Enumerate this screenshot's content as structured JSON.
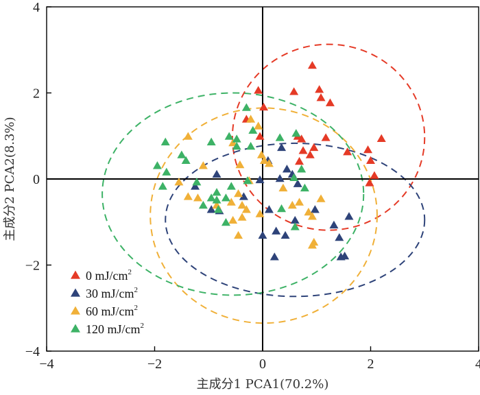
{
  "chart_data": {
    "type": "scatter",
    "xlabel": "主成分1 PCA1(70.2%)",
    "ylabel": "主成分2 PCA2(8.3%)",
    "xlim": [
      -4,
      4
    ],
    "ylim": [
      -4,
      4
    ],
    "xticks": [
      "−4",
      "−2",
      "0",
      "2",
      "4"
    ],
    "yticks": [
      "4",
      "2",
      "0",
      "−2",
      "−4"
    ],
    "unit_label": " mJ/cm",
    "unit_sup": "2",
    "series": [
      {
        "name": "0 mJ/cm2",
        "dose": "0",
        "color": "#e53a26",
        "ellipse": {
          "cx": 1.22,
          "cy": 0.97,
          "rx": 1.78,
          "ry": 2.16
        },
        "points": [
          [
            0.92,
            2.63
          ],
          [
            0.58,
            2.02
          ],
          [
            1.05,
            2.07
          ],
          [
            1.08,
            1.88
          ],
          [
            1.25,
            1.76
          ],
          [
            -0.08,
            2.05
          ],
          [
            0.02,
            1.66
          ],
          [
            -0.3,
            1.38
          ],
          [
            -0.05,
            0.98
          ],
          [
            0.65,
            0.98
          ],
          [
            0.72,
            0.92
          ],
          [
            0.75,
            0.65
          ],
          [
            0.68,
            0.4
          ],
          [
            0.95,
            0.72
          ],
          [
            1.17,
            0.95
          ],
          [
            1.57,
            0.62
          ],
          [
            1.95,
            0.67
          ],
          [
            2.2,
            0.93
          ],
          [
            2.0,
            0.42
          ],
          [
            2.07,
            0.07
          ],
          [
            1.98,
            -0.1
          ],
          [
            0.88,
            0.55
          ]
        ]
      },
      {
        "name": "30 mJ/cm2",
        "dose": "30",
        "color": "#2e4379",
        "ellipse": {
          "cx": 0.6,
          "cy": -0.95,
          "rx": 2.4,
          "ry": 1.78
        },
        "points": [
          [
            0.35,
            0.72
          ],
          [
            0.1,
            0.42
          ],
          [
            0.45,
            0.22
          ],
          [
            0.55,
            0.1
          ],
          [
            0.32,
            0.0
          ],
          [
            0.65,
            -0.12
          ],
          [
            -0.05,
            -0.03
          ],
          [
            -0.85,
            0.1
          ],
          [
            -1.25,
            -0.18
          ],
          [
            -0.95,
            -0.72
          ],
          [
            -0.8,
            -0.75
          ],
          [
            -0.35,
            -0.42
          ],
          [
            0.12,
            -0.72
          ],
          [
            0.25,
            -1.22
          ],
          [
            0.42,
            -1.32
          ],
          [
            0.0,
            -1.32
          ],
          [
            0.22,
            -1.82
          ],
          [
            1.32,
            -1.08
          ],
          [
            1.42,
            -1.37
          ],
          [
            1.52,
            -1.8
          ],
          [
            1.6,
            -0.88
          ],
          [
            1.45,
            -1.82
          ],
          [
            0.6,
            -0.97
          ],
          [
            0.97,
            -0.72
          ]
        ]
      },
      {
        "name": "60 mJ/cm2",
        "dose": "60",
        "color": "#f0b038",
        "ellipse": {
          "cx": 0.02,
          "cy": -0.85,
          "rx": 2.1,
          "ry": 2.5
        },
        "points": [
          [
            -0.22,
            1.38
          ],
          [
            -0.08,
            1.22
          ],
          [
            -1.38,
            0.98
          ],
          [
            -0.55,
            0.83
          ],
          [
            -0.02,
            0.55
          ],
          [
            -1.1,
            0.3
          ],
          [
            -0.42,
            0.32
          ],
          [
            0.12,
            0.35
          ],
          [
            -1.55,
            -0.08
          ],
          [
            -1.38,
            -0.42
          ],
          [
            -1.2,
            -0.45
          ],
          [
            -0.85,
            -0.62
          ],
          [
            -0.58,
            -0.55
          ],
          [
            -0.45,
            -0.35
          ],
          [
            -0.38,
            -0.62
          ],
          [
            -0.3,
            -0.72
          ],
          [
            -0.55,
            -0.97
          ],
          [
            -0.38,
            -0.9
          ],
          [
            -0.05,
            -0.82
          ],
          [
            -0.45,
            -1.32
          ],
          [
            0.38,
            -0.22
          ],
          [
            0.68,
            -0.55
          ],
          [
            0.85,
            -0.78
          ],
          [
            0.92,
            -0.88
          ],
          [
            1.08,
            -0.47
          ],
          [
            0.95,
            -1.48
          ],
          [
            0.92,
            -1.55
          ],
          [
            0.55,
            -0.62
          ],
          [
            -0.25,
            -0.05
          ],
          [
            0.03,
            0.42
          ]
        ]
      },
      {
        "name": "120 mJ/cm2",
        "dose": "120",
        "color": "#3db266",
        "ellipse": {
          "cx": -0.55,
          "cy": -0.35,
          "rx": 2.42,
          "ry": 2.35
        },
        "points": [
          [
            -0.3,
            1.65
          ],
          [
            -0.18,
            1.12
          ],
          [
            -0.62,
            0.98
          ],
          [
            -0.48,
            0.92
          ],
          [
            -0.48,
            0.75
          ],
          [
            -0.22,
            0.75
          ],
          [
            -1.8,
            0.85
          ],
          [
            -0.95,
            0.85
          ],
          [
            -1.5,
            0.55
          ],
          [
            -1.42,
            0.42
          ],
          [
            -1.95,
            0.3
          ],
          [
            -1.78,
            0.15
          ],
          [
            -1.85,
            -0.18
          ],
          [
            -1.22,
            -0.08
          ],
          [
            -0.85,
            -0.32
          ],
          [
            -0.58,
            -0.18
          ],
          [
            -0.68,
            -0.45
          ],
          [
            -0.85,
            -0.5
          ],
          [
            -0.82,
            -0.72
          ],
          [
            -1.1,
            -0.62
          ],
          [
            -0.95,
            -0.45
          ],
          [
            -0.28,
            -0.05
          ],
          [
            0.35,
            -0.7
          ],
          [
            0.6,
            -1.12
          ],
          [
            0.72,
            0.22
          ],
          [
            0.78,
            -0.22
          ],
          [
            0.58,
            0.02
          ],
          [
            -0.68,
            -1.02
          ],
          [
            0.32,
            0.95
          ],
          [
            0.62,
            1.05
          ]
        ]
      }
    ]
  }
}
